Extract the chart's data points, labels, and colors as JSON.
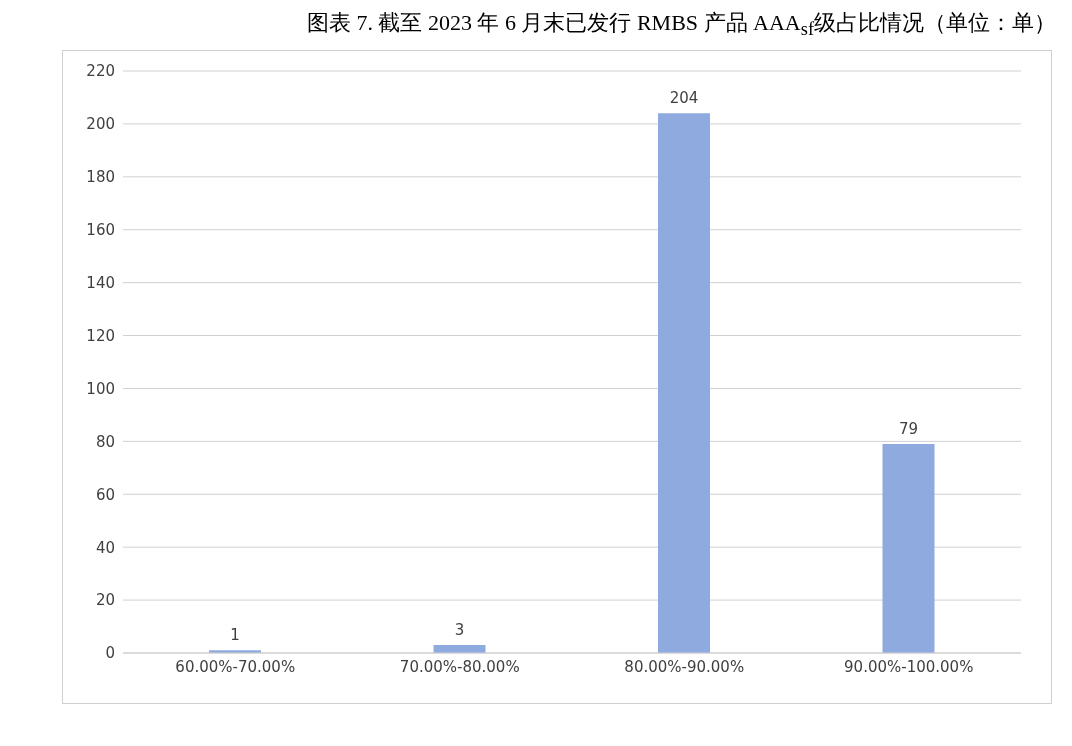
{
  "chart_data": {
    "type": "bar",
    "title": "图表 7.   截至 2023 年 6 月末已发行 RMBS 产品 AAA$_{sf}$级占比情况（单位：单）",
    "categories": [
      "60.00%-70.00%",
      "70.00%-80.00%",
      "80.00%-90.00%",
      "90.00%-100.00%"
    ],
    "values": [
      1,
      3,
      204,
      79
    ],
    "color": "#8eaadf",
    "ylim": [
      0,
      220
    ],
    "yticks": [
      0,
      20,
      40,
      60,
      80,
      100,
      120,
      140,
      160,
      180,
      200,
      220
    ],
    "grid": "y",
    "data_labels": true
  }
}
